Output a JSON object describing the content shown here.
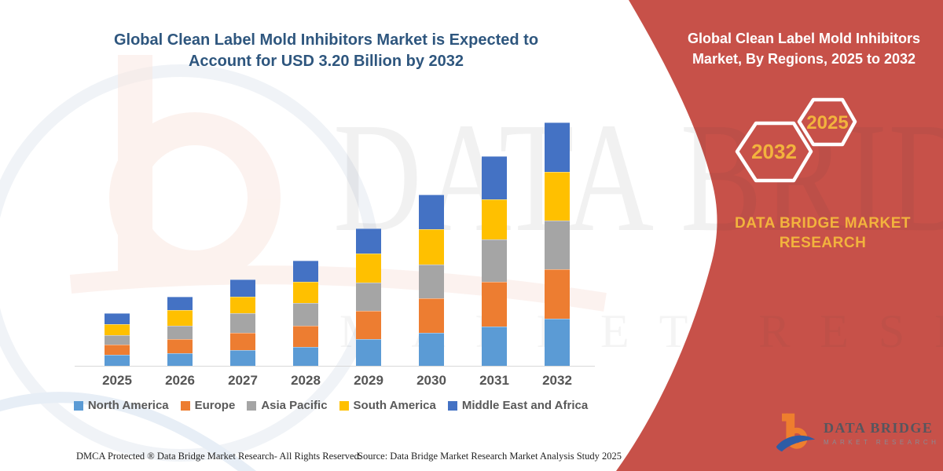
{
  "header": {
    "title_lines": [
      "Global Clean Label Mold Inhibitors Market is Expected to",
      "Account for USD 3.20 Billion by 2032"
    ]
  },
  "chart_data": {
    "type": "bar",
    "stacked": true,
    "title": "Global Clean Label Mold Inhibitors Market is Expected to Account for USD 3.20 Billion by 2032",
    "unit": "USD Billion",
    "categories": [
      "2025",
      "2026",
      "2027",
      "2028",
      "2029",
      "2030",
      "2031",
      "2032"
    ],
    "series": [
      {
        "name": "North America",
        "color": "#5B9BD5",
        "values": [
          0.14,
          0.17,
          0.21,
          0.25,
          0.35,
          0.43,
          0.52,
          0.62
        ]
      },
      {
        "name": "Europe",
        "color": "#ED7D31",
        "values": [
          0.14,
          0.18,
          0.22,
          0.28,
          0.37,
          0.46,
          0.58,
          0.65
        ]
      },
      {
        "name": "Asia Pacific",
        "color": "#A5A5A5",
        "values": [
          0.12,
          0.18,
          0.26,
          0.29,
          0.37,
          0.44,
          0.56,
          0.64
        ]
      },
      {
        "name": "South America",
        "color": "#FFC000",
        "values": [
          0.15,
          0.2,
          0.22,
          0.28,
          0.38,
          0.46,
          0.53,
          0.64
        ]
      },
      {
        "name": "Middle East and Africa",
        "color": "#4472C4",
        "values": [
          0.14,
          0.18,
          0.23,
          0.28,
          0.33,
          0.46,
          0.56,
          0.65
        ]
      }
    ],
    "totals": [
      0.69,
      0.91,
      1.14,
      1.38,
      1.8,
      2.25,
      2.75,
      3.2
    ],
    "ylim": [
      0,
      3.4
    ],
    "grid": false,
    "legend_position": "bottom"
  },
  "side_panel": {
    "title_lines": [
      "Global Clean Label Mold Inhibitors",
      "Market, By Regions, 2025 to 2032"
    ],
    "hexagons": [
      {
        "label": "2032"
      },
      {
        "label": "2025"
      }
    ],
    "brand_line": "DATA BRIDGE MARKET RESEARCH",
    "bg_color": "#C75149",
    "accent_color": "#F2B33D"
  },
  "watermark": {
    "line1": "DATA BRIDGE",
    "line2": "MARKET RESEARCH"
  },
  "logo": {
    "title": "DATA BRIDGE",
    "subtitle": "MARKET RESEARCH"
  },
  "footer": {
    "dmca": "DMCA Protected ® Data Bridge Market Research-  All Rights Reserved.",
    "source": "Source: Data Bridge Market Research  Market Analysis Study 2025"
  }
}
